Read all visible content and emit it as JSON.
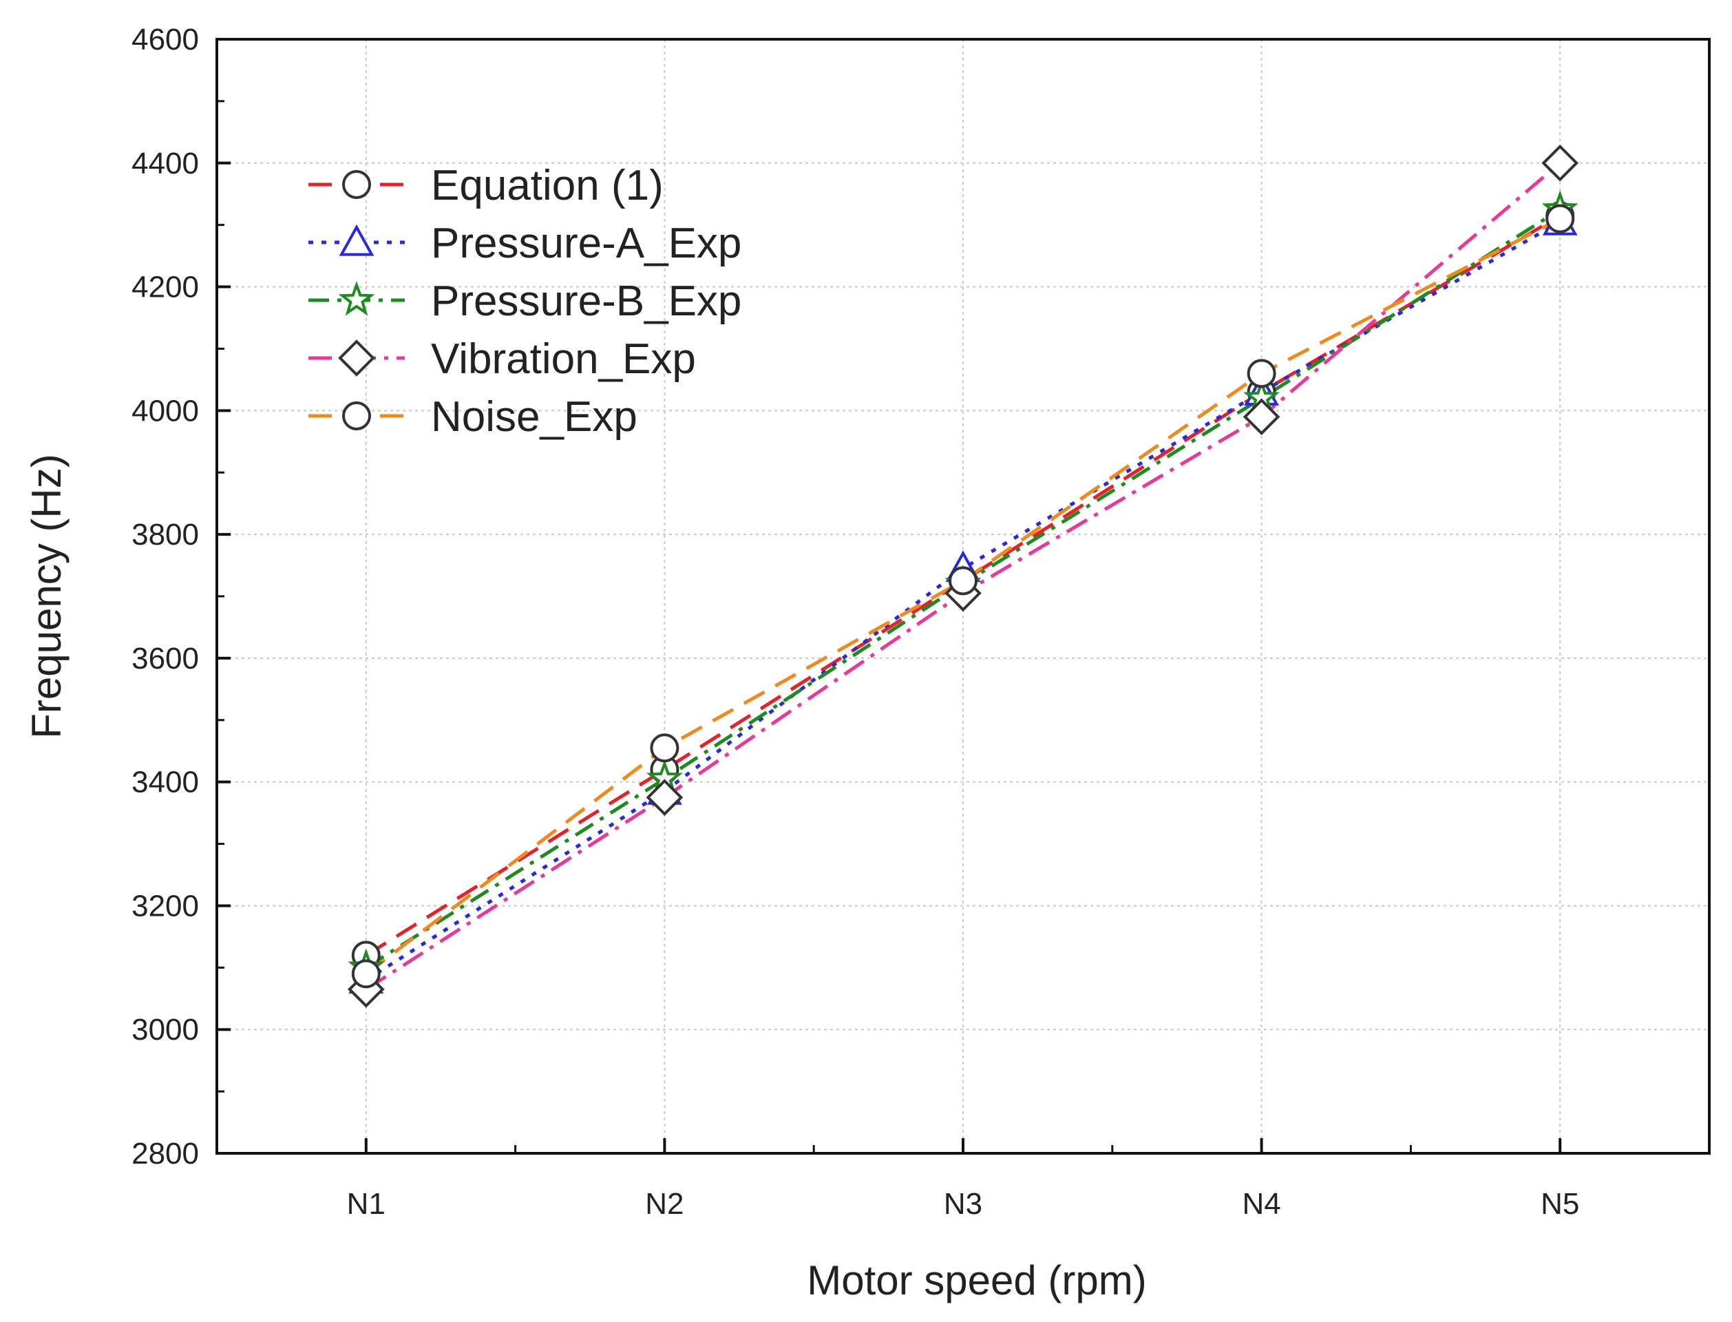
{
  "chart_data": {
    "type": "line",
    "title": "",
    "xlabel": "Motor speed (rpm)",
    "ylabel": "Frequency (Hz)",
    "categories": [
      "N1",
      "N2",
      "N3",
      "N4",
      "N5"
    ],
    "ylim": [
      2800,
      4600
    ],
    "yticks": [
      2800,
      3000,
      3200,
      3400,
      3600,
      3800,
      4000,
      4200,
      4400,
      4600
    ],
    "grid": true,
    "legend_position": "top-left",
    "series": [
      {
        "name": "Equation (1)",
        "color": "#e8202a",
        "dash": "long",
        "marker": "circle",
        "values": [
          3120,
          3420,
          3725,
          4030,
          4315
        ]
      },
      {
        "name": "Pressure-A_Exp",
        "color": "#2828e0",
        "dash": "dot",
        "marker": "triangle",
        "values": [
          3080,
          3385,
          3745,
          4030,
          4305
        ]
      },
      {
        "name": "Pressure-B_Exp",
        "color": "#1f8a1f",
        "dash": "dashdot",
        "marker": "star",
        "values": [
          3100,
          3405,
          3720,
          4020,
          4325
        ]
      },
      {
        "name": "Vibration_Exp",
        "color": "#e8389a",
        "dash": "longdot",
        "marker": "diamond",
        "values": [
          3065,
          3375,
          3705,
          3990,
          4400
        ]
      },
      {
        "name": "Noise_Exp",
        "color": "#f08a1c",
        "dash": "long",
        "marker": "circle",
        "values": [
          3090,
          3455,
          3725,
          4060,
          4310
        ]
      }
    ]
  }
}
